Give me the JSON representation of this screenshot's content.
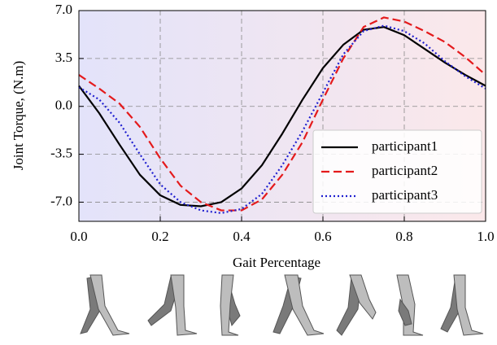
{
  "chart_data": {
    "type": "line",
    "xlabel": "Gait Percentage",
    "ylabel": "Joint Torque, (N.m)",
    "x": [
      0,
      0.05,
      0.1,
      0.15,
      0.2,
      0.25,
      0.3,
      0.35,
      0.4,
      0.45,
      0.5,
      0.55,
      0.6,
      0.65,
      0.7,
      0.75,
      0.8,
      0.85,
      0.9,
      0.95,
      1.0
    ],
    "series": [
      {
        "name": "participant1",
        "color": "#000000",
        "dash": "solid",
        "values": [
          1.5,
          -0.5,
          -2.8,
          -5.0,
          -6.5,
          -7.2,
          -7.3,
          -7.0,
          -6.0,
          -4.3,
          -2.0,
          0.5,
          2.8,
          4.5,
          5.6,
          5.8,
          5.2,
          4.2,
          3.2,
          2.3,
          1.5
        ]
      },
      {
        "name": "participant2",
        "color": "#e41a1c",
        "dash": "dashed",
        "values": [
          2.3,
          1.3,
          0.2,
          -1.5,
          -3.8,
          -5.8,
          -7.0,
          -7.6,
          -7.6,
          -6.8,
          -5.0,
          -2.6,
          0.5,
          3.5,
          5.8,
          6.5,
          6.2,
          5.5,
          4.7,
          3.6,
          2.3
        ]
      },
      {
        "name": "participant3",
        "color": "#1f1fd0",
        "dash": "dotted",
        "values": [
          1.4,
          0.5,
          -1.2,
          -3.5,
          -5.7,
          -7.0,
          -7.6,
          -7.8,
          -7.5,
          -6.4,
          -4.3,
          -1.8,
          1.0,
          3.8,
          5.5,
          5.9,
          5.5,
          4.6,
          3.3,
          2.2,
          1.3
        ]
      }
    ],
    "xlim": [
      0,
      1.0
    ],
    "xticks": [
      {
        "value": 0,
        "label": "0.0"
      },
      0.2,
      0.4,
      0.6,
      0.8,
      {
        "value": 1,
        "label": "1.0"
      }
    ],
    "ylim": [
      -8.4,
      7.0
    ],
    "yticks": [
      {
        "value": -7,
        "label": "-7.0"
      },
      -3.5,
      {
        "value": 0,
        "label": "0.0"
      },
      3.5,
      {
        "value": 7,
        "label": "7.0"
      }
    ],
    "grid": true,
    "legend": "lower right",
    "background": [
      "#e3e3fa",
      "#fbe8ea"
    ]
  }
}
